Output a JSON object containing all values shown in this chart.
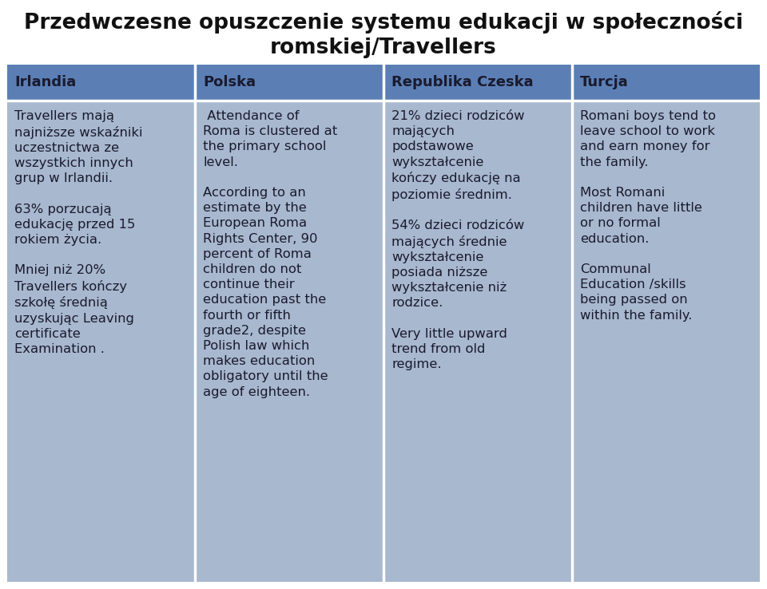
{
  "title_line1": "Przedwczesne opuszczenie systemu edukacji w społeczności",
  "title_line2": "romskiej/Travellers",
  "title_fontsize": 19,
  "header_bg": "#5b7fb5",
  "cell_bg": "#a8b8ce",
  "header_text_color": "#1a1a2e",
  "cell_text_color": "#1a1a2e",
  "columns": [
    "Irlandia",
    "Polska",
    "Republika Czeska",
    "Turcja"
  ],
  "cell_contents": [
    "Travellers mają\nnajniższe wskaźniki\nuczestnictwa ze\nwszystkich innych\ngrup w Irlandii.\n\n63% porzucają\nedukację przed 15\nrokiem życia.\n\nMniej niż 20%\nTravellers kończy\nszkołę średnią\nuzyskując Leaving\ncertificate\nExamination .",
    " Attendance of\nRoma is clustered at\nthe primary school\nlevel.\n\nAccording to an\nestimate by the\nEuropean Roma\nRights Center, 90\npercent of Roma\nchildren do not\ncontinue their\neducation past the\nfourth or fifth\ngrade2, despite\nPolish law which\nmakes education\nobligatory until the\nage of eighteen.",
    "21% dzieci rodziców\nmających\npodstawowe\nwykształcenie\nkończy edukację na\npoziomie średnim.\n\n54% dzieci rodziców\nmających średnie\nwykształcenie\nposiada niższe\nwykształcenie niż\nrodzice.\n\nVery little upward\ntrend from old\nregime.",
    "Romani boys tend to\nleave school to work\nand earn money for\nthe family.\n\nMost Romani\nchildren have little\nor no formal\neducation.\n\nCommunal\nEducation /skills\nbeing passed on\nwithin the family."
  ],
  "header_fontsize": 13,
  "cell_fontsize": 11.8,
  "background_color": "#ffffff",
  "border_color": "#ffffff",
  "border_width": 2.5,
  "fig_width": 9.6,
  "fig_height": 7.38,
  "dpi": 100
}
